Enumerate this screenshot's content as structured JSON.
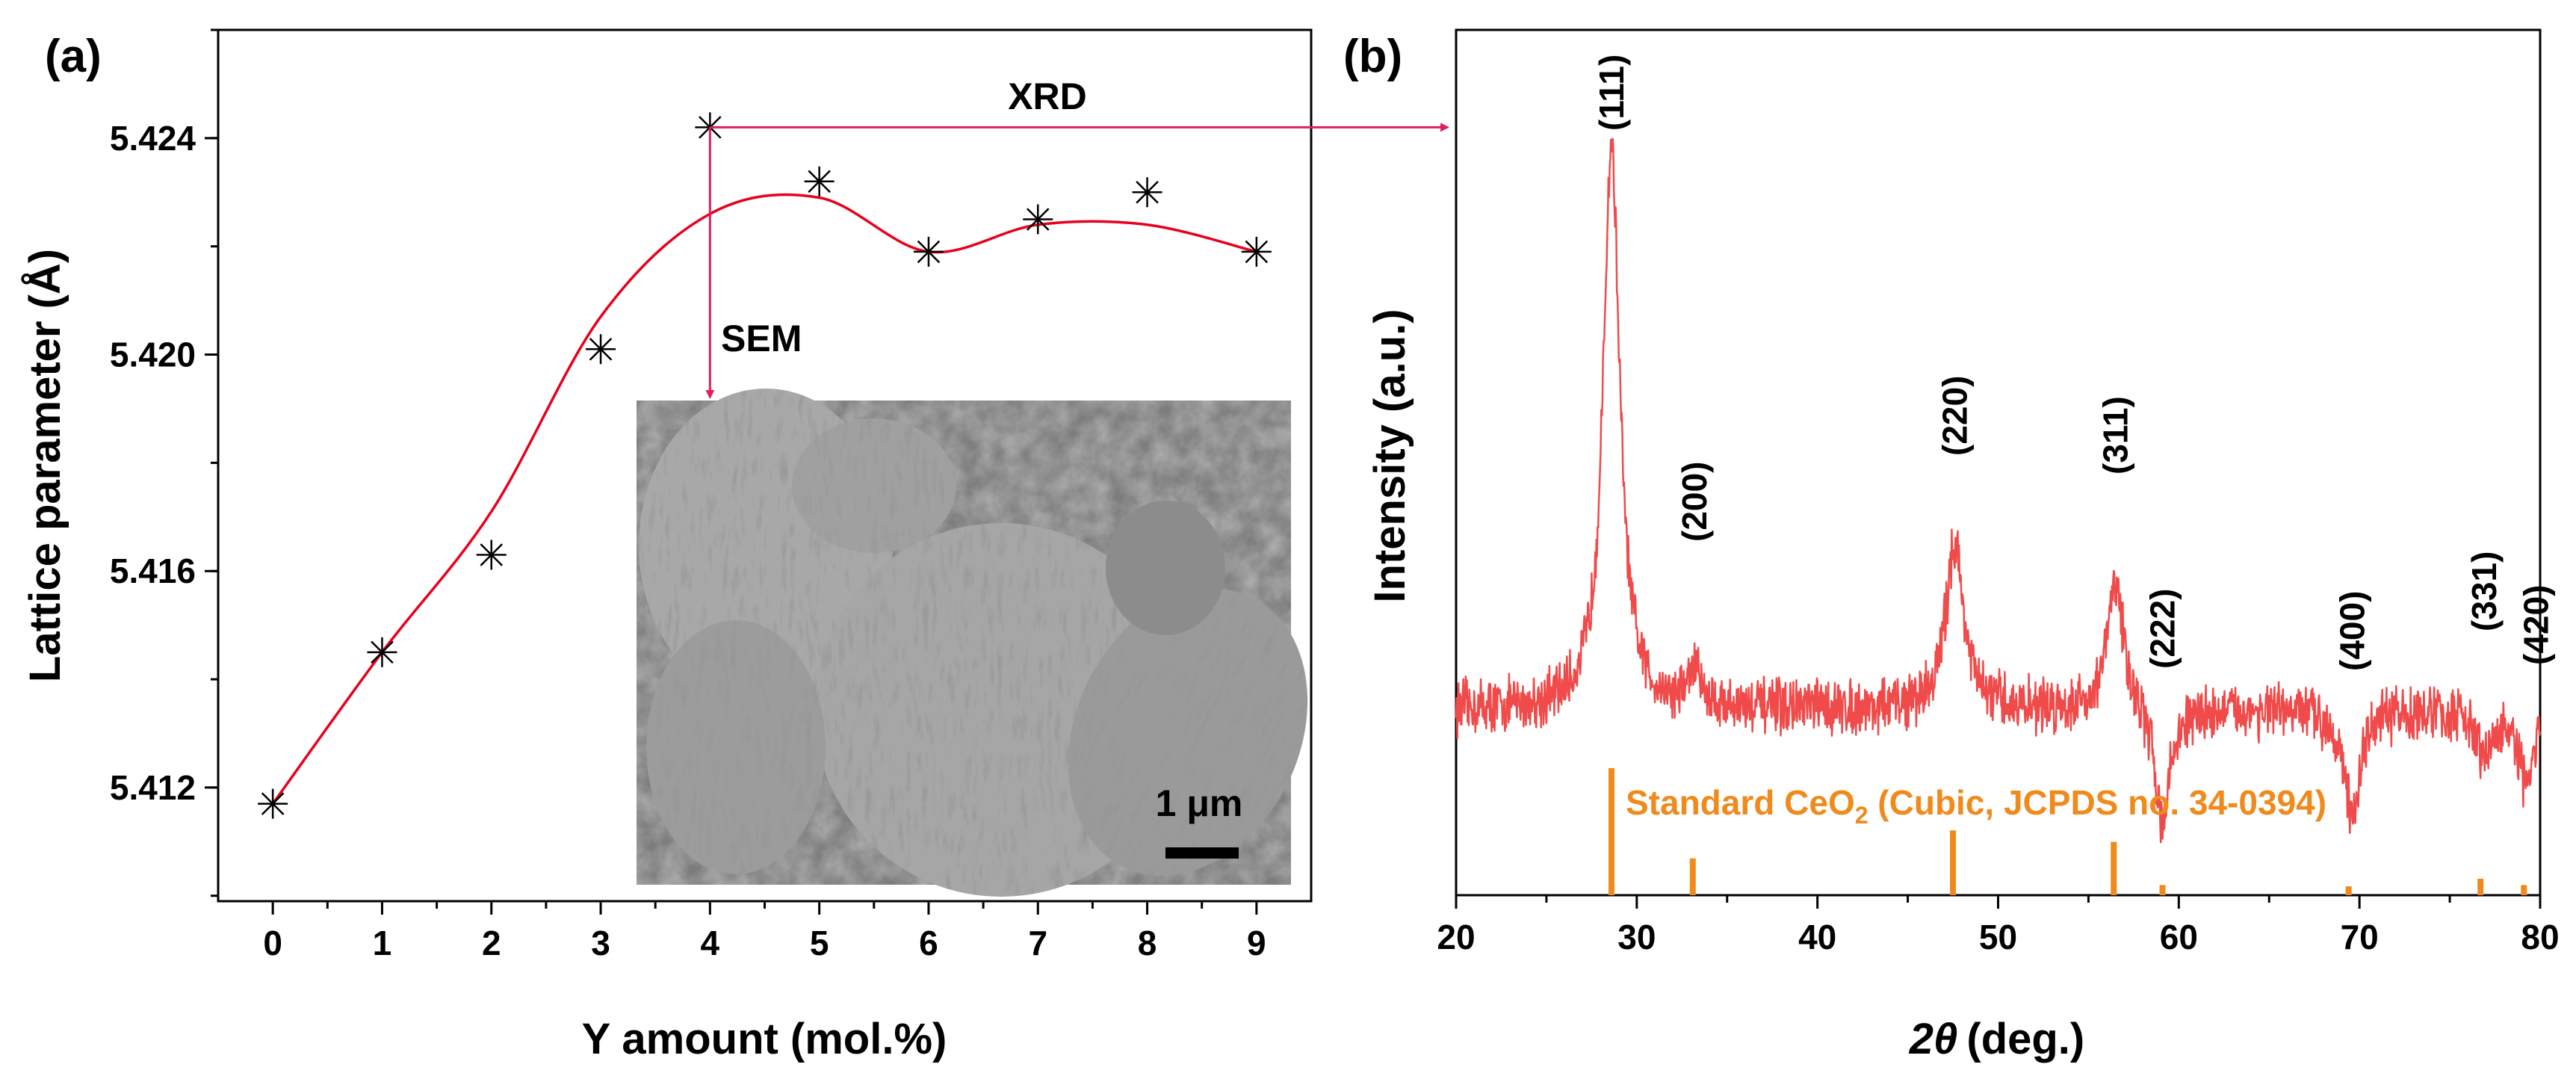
{
  "colors": {
    "fit_curve": "#e8001c",
    "xrd_pattern": "#f04a4a",
    "standard_lines": "#f08a1c",
    "arrow": "#e0205a",
    "markers": "#000000"
  },
  "chart_data": [
    {
      "panel": "(a)",
      "type": "scatter",
      "xlabel": "Y amount (mol.%)",
      "ylabel": "Lattice parameter (Å)",
      "xlim": [
        -0.5,
        9.5
      ],
      "ylim": [
        5.4099,
        5.426
      ],
      "xticks": [
        0,
        1,
        2,
        3,
        4,
        5,
        6,
        7,
        8,
        9
      ],
      "yticks": [
        5.412,
        5.416,
        5.42,
        5.424
      ],
      "ytick_labels": [
        "5.412",
        "5.416",
        "5.420",
        "5.424"
      ],
      "x": [
        0,
        1,
        2,
        3,
        4,
        5,
        6,
        7,
        8,
        9
      ],
      "y": [
        5.4117,
        5.4145,
        5.4163,
        5.4201,
        5.4242,
        5.4232,
        5.4219,
        5.4225,
        5.423,
        5.4219
      ],
      "marker": "asterisk",
      "fit": {
        "type": "smooth-curve",
        "x": [
          0,
          1,
          2,
          3,
          4,
          5,
          6,
          7,
          8,
          9
        ],
        "y": [
          5.4117,
          5.4145,
          5.4171,
          5.4207,
          5.4226,
          5.4229,
          5.4219,
          5.4224,
          5.4224,
          5.4219
        ]
      },
      "annotations": {
        "xrd": "XRD",
        "sem": "SEM",
        "scale_bar": "1 μm"
      }
    },
    {
      "panel": "(b)",
      "type": "line",
      "xlabel_symbol": "2θ",
      "xlabel_unit": "(deg.)",
      "ylabel": "Intensity (a.u.)",
      "xlim": [
        20,
        80
      ],
      "xticks": [
        20,
        30,
        40,
        50,
        60,
        70,
        80
      ],
      "y_units": "arbitrary",
      "baseline": 0.22,
      "peaks": [
        {
          "two_theta": 28.6,
          "height": 1.0,
          "label": "(111)"
        },
        {
          "two_theta": 33.2,
          "height": 0.27,
          "label": "(200)"
        },
        {
          "two_theta": 47.6,
          "height": 0.45,
          "label": "(220)"
        },
        {
          "two_theta": 56.5,
          "height": 0.4,
          "label": "(311)"
        },
        {
          "two_theta": 59.1,
          "height": 0.06,
          "label": "(222)"
        },
        {
          "two_theta": 69.6,
          "height": 0.07,
          "label": "(400)"
        },
        {
          "two_theta": 76.9,
          "height": 0.16,
          "label": "(331)"
        },
        {
          "two_theta": 79.2,
          "height": 0.12,
          "label": "(420)"
        }
      ],
      "reference": {
        "label_main": "Standard CeO",
        "label_sub": "2",
        "label_rest": " (Cubic, JCPDS no. 34-0394)",
        "lines": [
          {
            "two_theta": 28.6,
            "intensity": 1.0
          },
          {
            "two_theta": 33.1,
            "intensity": 0.29
          },
          {
            "two_theta": 47.5,
            "intensity": 0.51
          },
          {
            "two_theta": 56.4,
            "intensity": 0.42
          },
          {
            "two_theta": 59.1,
            "intensity": 0.08
          },
          {
            "two_theta": 69.4,
            "intensity": 0.07
          },
          {
            "two_theta": 76.7,
            "intensity": 0.13
          },
          {
            "two_theta": 79.1,
            "intensity": 0.08
          }
        ]
      }
    }
  ]
}
